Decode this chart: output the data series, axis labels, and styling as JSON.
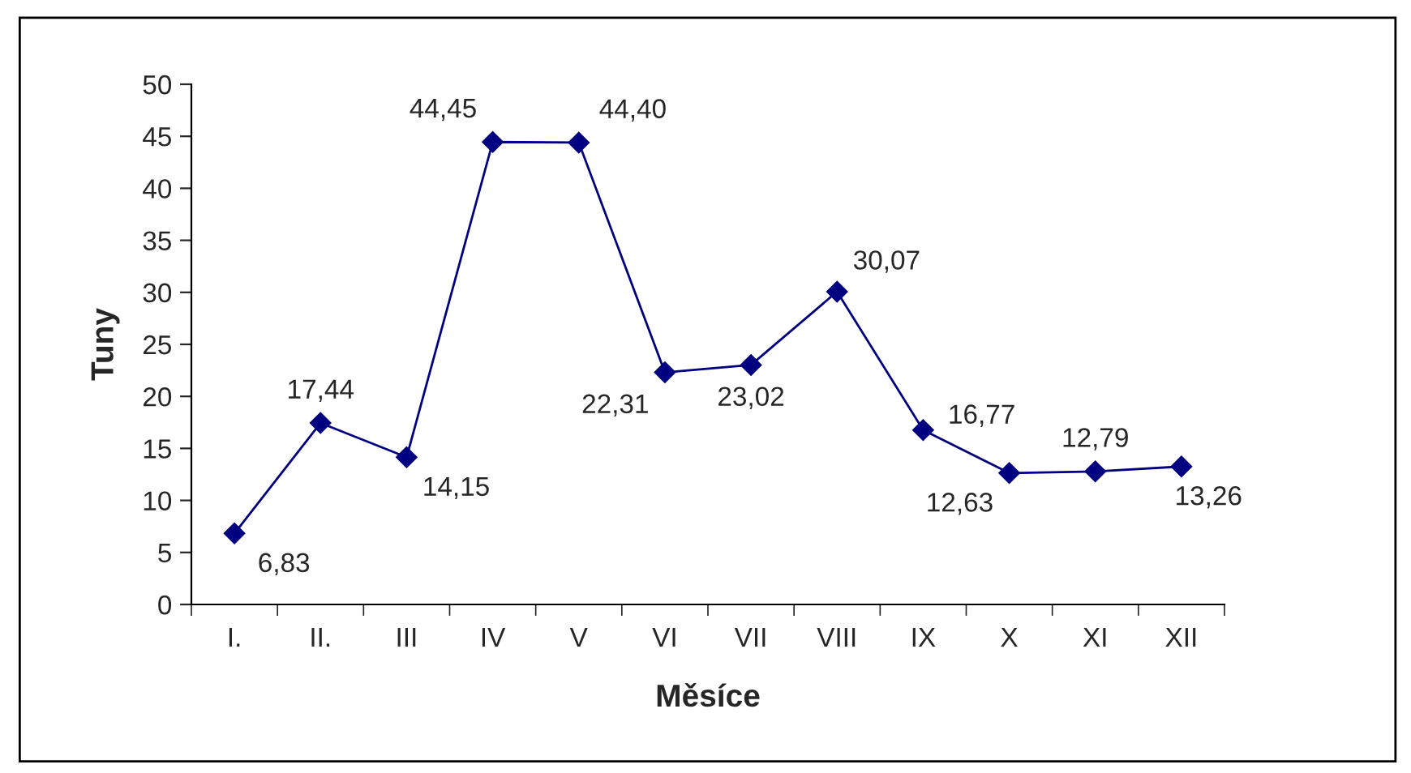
{
  "chart_data": {
    "type": "line",
    "xlabel": "Měsíce",
    "ylabel": "Tuny",
    "categories": [
      "I.",
      "II.",
      "III",
      "IV",
      "V",
      "VI",
      "VII",
      "VIII",
      "IX",
      "X",
      "XI",
      "XII"
    ],
    "series": [
      {
        "color": "#000080",
        "values": [
          6.83,
          17.44,
          14.15,
          44.45,
          44.4,
          22.31,
          23.02,
          30.07,
          16.77,
          12.63,
          12.79,
          13.26
        ],
        "value_labels": [
          "6,83",
          "17,44",
          "14,15",
          "44,45",
          "44,40",
          "22,31",
          "23,02",
          "30,07",
          "16,77",
          "12,63",
          "12,79",
          "13,26"
        ]
      }
    ],
    "ylim": [
      0,
      50
    ],
    "yticks": [
      0,
      5,
      10,
      15,
      20,
      25,
      30,
      35,
      40,
      45,
      50
    ],
    "marker": "diamond",
    "line_style": "solid",
    "grid": false,
    "legend": false
  }
}
